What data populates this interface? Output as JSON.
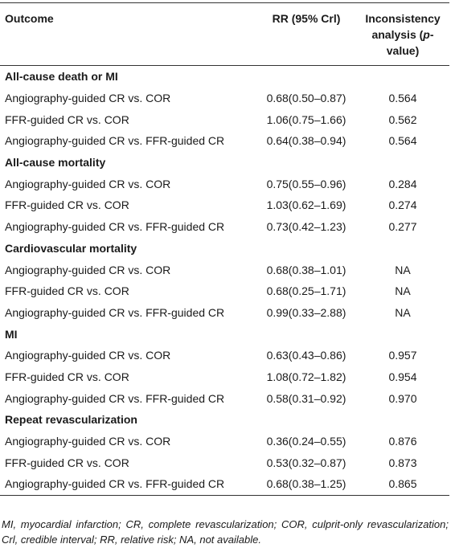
{
  "table": {
    "header": {
      "outcome": "Outcome",
      "rr": "RR (95% Crl)",
      "inconsistency": [
        "Inconsistency analysis (",
        "p",
        "-value)"
      ]
    },
    "groups": [
      {
        "title": "All-cause death or MI",
        "rows": [
          [
            "Angiography-guided CR vs. COR",
            "0.68(0.50–0.87)",
            "0.564"
          ],
          [
            "FFR-guided CR vs. COR",
            "1.06(0.75–1.66)",
            "0.562"
          ],
          [
            "Angiography-guided CR vs. FFR-guided CR",
            "0.64(0.38–0.94)",
            "0.564"
          ]
        ]
      },
      {
        "title": "All-cause mortality",
        "rows": [
          [
            "Angiography-guided CR vs. COR",
            "0.75(0.55–0.96)",
            "0.284"
          ],
          [
            "FFR-guided CR vs. COR",
            "1.03(0.62–1.69)",
            "0.274"
          ],
          [
            "Angiography-guided CR vs. FFR-guided CR",
            "0.73(0.42–1.23)",
            "0.277"
          ]
        ]
      },
      {
        "title": "Cardiovascular mortality",
        "rows": [
          [
            "Angiography-guided CR vs. COR",
            "0.68(0.38–1.01)",
            "NA"
          ],
          [
            "FFR-guided CR vs. COR",
            "0.68(0.25–1.71)",
            "NA"
          ],
          [
            "Angiography-guided CR vs. FFR-guided CR",
            "0.99(0.33–2.88)",
            "NA"
          ]
        ]
      },
      {
        "title": "MI",
        "rows": [
          [
            "Angiography-guided CR vs. COR",
            "0.63(0.43–0.86)",
            "0.957"
          ],
          [
            "FFR-guided CR vs. COR",
            "1.08(0.72–1.82)",
            "0.954"
          ],
          [
            "Angiography-guided CR vs. FFR-guided CR",
            "0.58(0.31–0.92)",
            "0.970"
          ]
        ]
      },
      {
        "title": "Repeat revascularization",
        "rows": [
          [
            "Angiography-guided CR vs. COR",
            "0.36(0.24–0.55)",
            "0.876"
          ],
          [
            "FFR-guided CR vs. COR",
            "0.53(0.32–0.87)",
            "0.873"
          ],
          [
            "Angiography-guided CR vs. FFR-guided CR",
            "0.68(0.38–1.25)",
            "0.865"
          ]
        ]
      }
    ],
    "footnote": "MI, myocardial infarction; CR, complete revascularization; COR, culprit-only revascularization; Crl, credible interval; RR, relative risk; NA, not available."
  }
}
